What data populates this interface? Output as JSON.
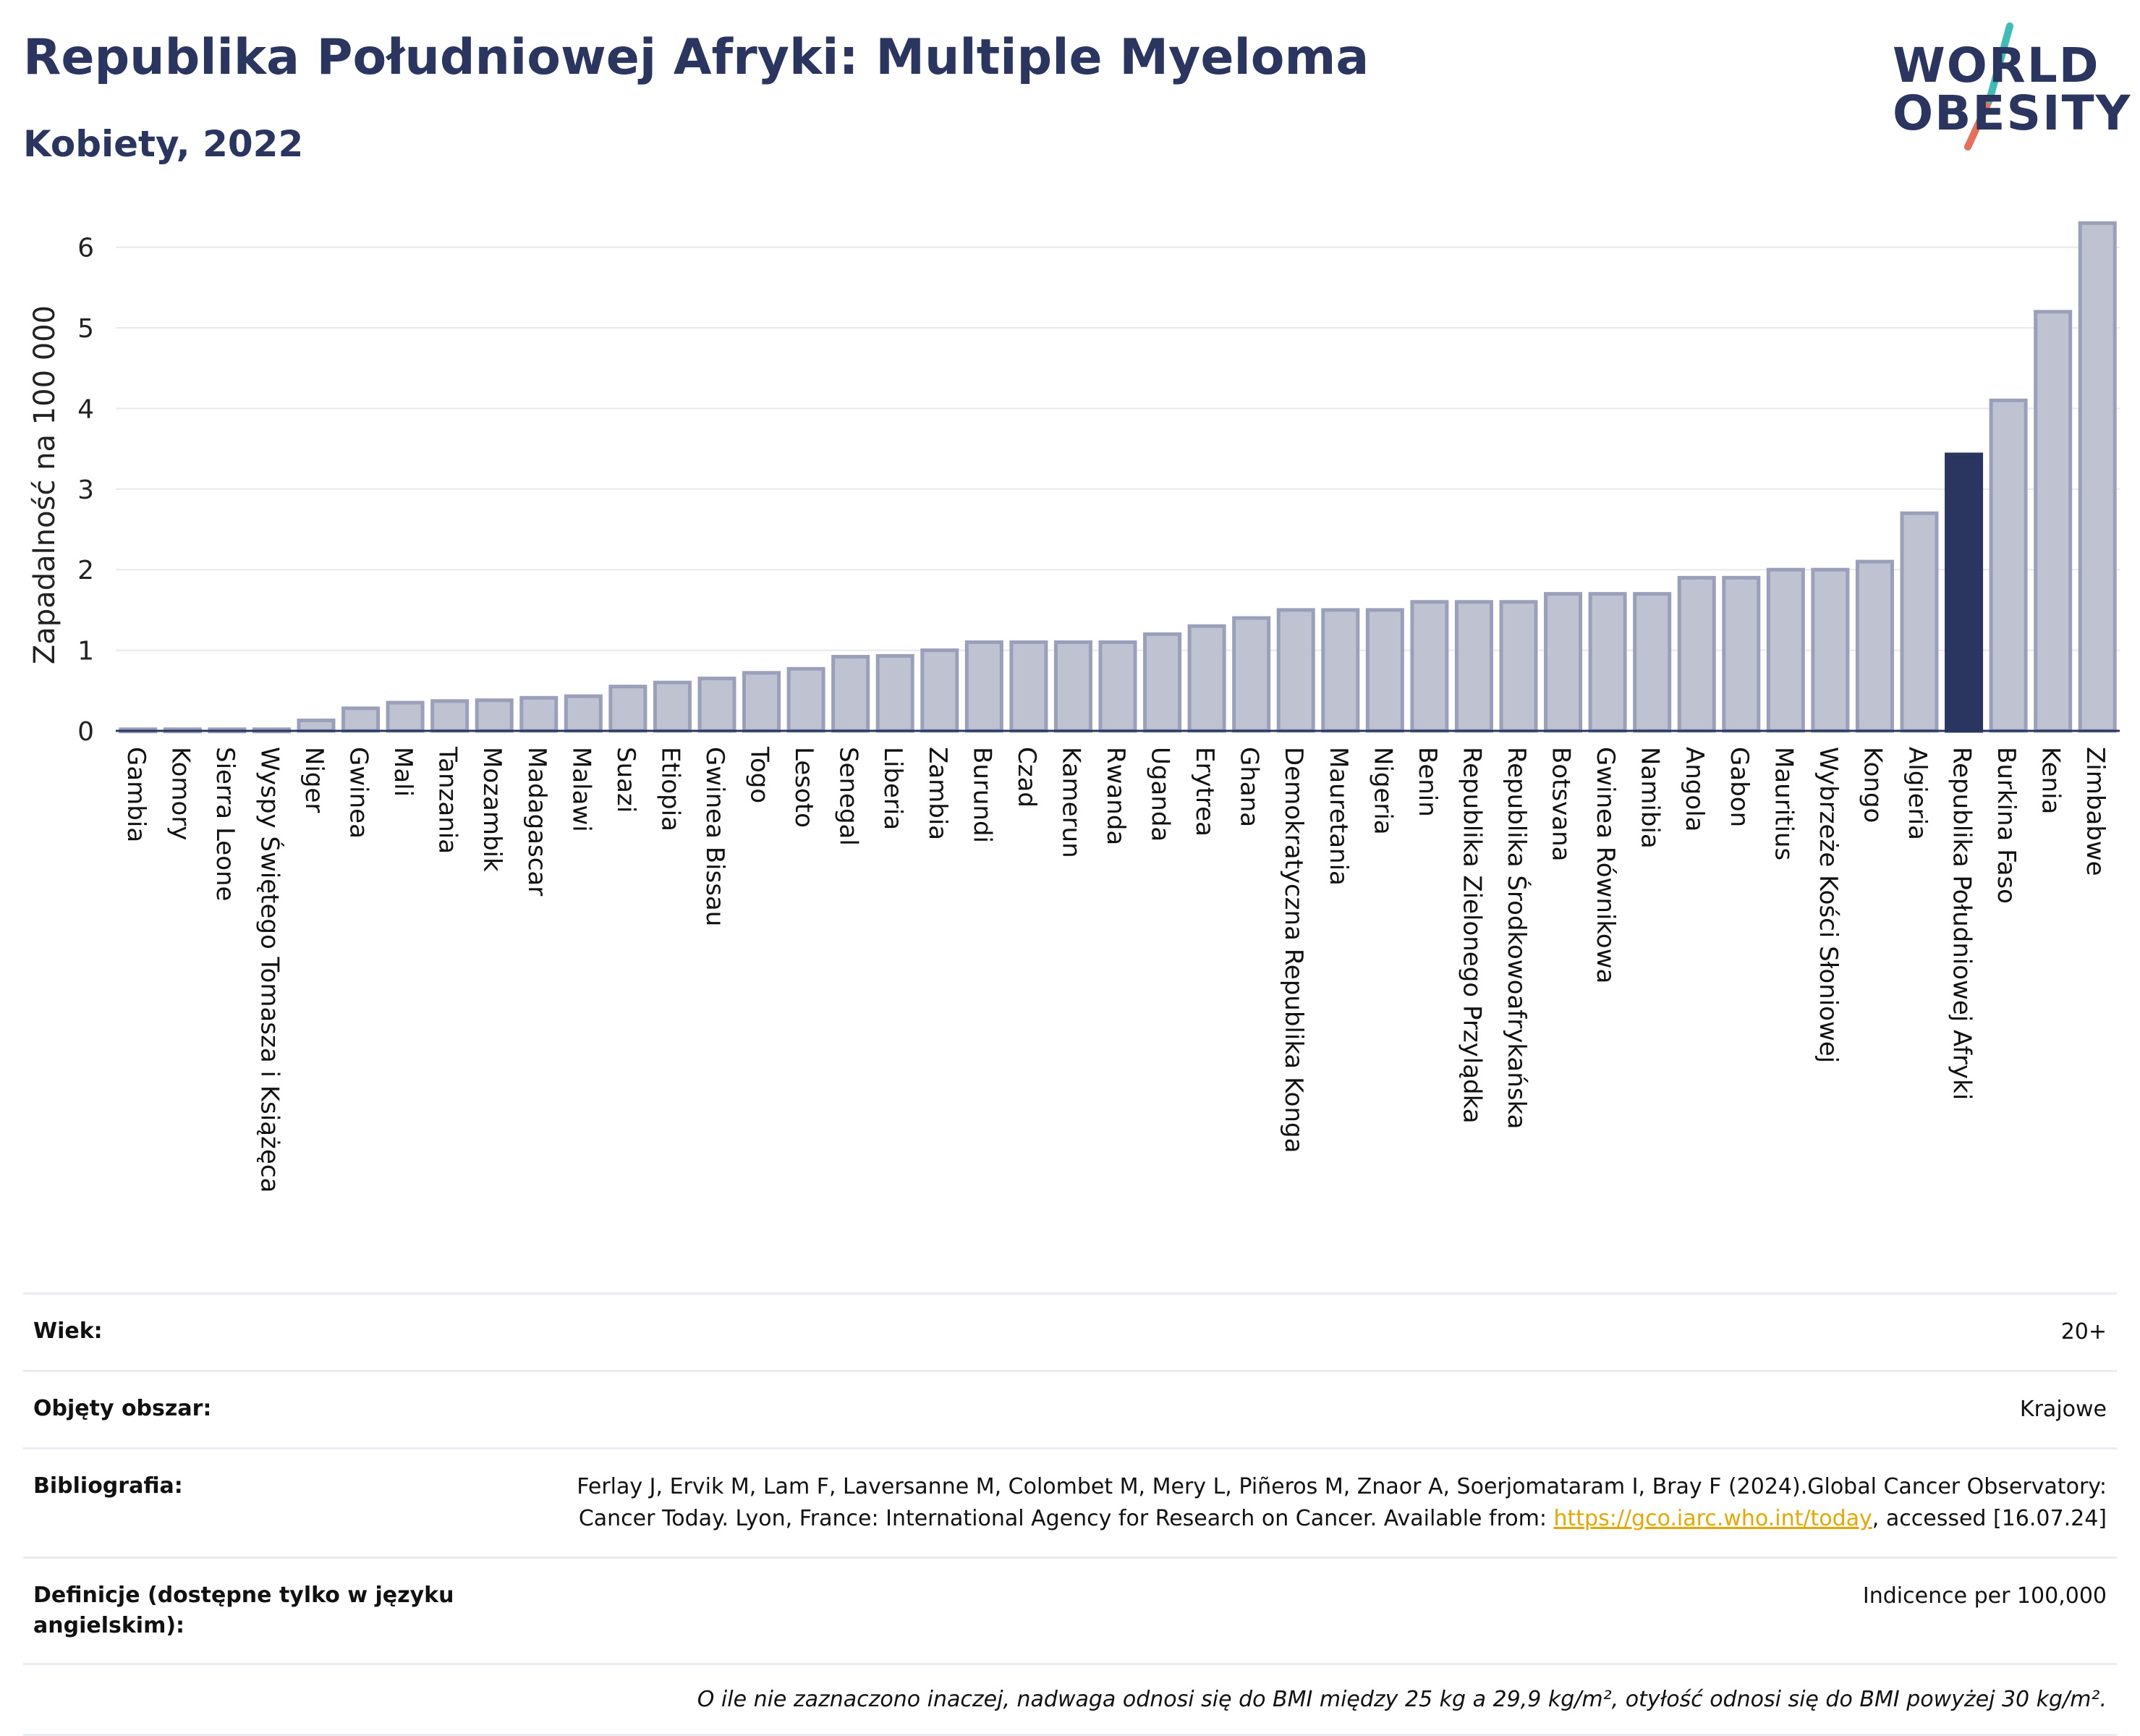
{
  "header": {
    "title": "Republika Południowej Afryki: Multiple Myeloma",
    "subtitle": "Kobiety, 2022"
  },
  "logo": {
    "line1": "WORLD",
    "line2": "OBESITY",
    "colors": {
      "text": "#2a3560",
      "slash_top": "#3dbdb5",
      "slash_bottom": "#e8705a"
    }
  },
  "chart_data": {
    "type": "bar",
    "title": "",
    "xlabel": "",
    "ylabel": "Zapadalność na 100 000",
    "ylim": [
      0,
      6.5
    ],
    "yticks": [
      0,
      1,
      2,
      3,
      4,
      5,
      6
    ],
    "grid": true,
    "highlight": "Republika Południowej Afryki",
    "colors": {
      "bar": "#bfc3d1",
      "bar_border": "#9aa0b9",
      "highlight": "#2a3560",
      "grid": "#e6e8ee"
    },
    "categories": [
      "Gambia",
      "Komory",
      "Sierra Leone",
      "Wyspy Świętego Tomasza i Książęca",
      "Niger",
      "Gwinea",
      "Mali",
      "Tanzania",
      "Mozambik",
      "Madagascar",
      "Malawi",
      "Suazi",
      "Etiopia",
      "Gwinea Bissau",
      "Togo",
      "Lesoto",
      "Senegal",
      "Liberia",
      "Zambia",
      "Burundi",
      "Czad",
      "Kamerun",
      "Rwanda",
      "Uganda",
      "Erytrea",
      "Ghana",
      "Demokratyczna Republika Konga",
      "Mauretania",
      "Nigeria",
      "Benin",
      "Republika Zielonego Przylądka",
      "Republika Środkowoafrykańska",
      "Botsvana",
      "Gwinea Równikowa",
      "Namibia",
      "Angola",
      "Gabon",
      "Mauritius",
      "Wybrzeże Kości Słoniowej",
      "Kongo",
      "Algieria",
      "Republika Południowej Afryki",
      "Burkina Faso",
      "Kenia",
      "Zimbabwe"
    ],
    "values": [
      0.02,
      0.02,
      0.02,
      0.02,
      0.13,
      0.28,
      0.35,
      0.37,
      0.38,
      0.41,
      0.43,
      0.55,
      0.6,
      0.65,
      0.72,
      0.77,
      0.92,
      0.93,
      1.0,
      1.1,
      1.1,
      1.1,
      1.1,
      1.2,
      1.3,
      1.4,
      1.5,
      1.5,
      1.5,
      1.6,
      1.6,
      1.6,
      1.7,
      1.7,
      1.7,
      1.9,
      1.9,
      2.0,
      2.0,
      2.1,
      2.7,
      3.43,
      4.1,
      5.2,
      6.3
    ]
  },
  "meta": {
    "rows": [
      {
        "key": "Wiek:",
        "value": "20+"
      },
      {
        "key": "Objęty obszar:",
        "value": "Krajowe"
      },
      {
        "key": "Bibliografia:",
        "value_pre": "Ferlay J, Ervik M, Lam F, Laversanne M, Colombet M, Mery L, Piñeros M, Znaor A, Soerjomataram I, Bray F (2024).Global Cancer Observatory: Cancer Today. Lyon, France: International Agency for Research on Cancer. Available from: ",
        "link": "https://gco.iarc.who.int/today",
        "value_post": ", accessed [16.07.24]"
      },
      {
        "key": "Definicje (dostępne tylko w języku angielskim):",
        "value": "Indicence per 100,000"
      }
    ],
    "note": "O ile nie zaznaczono inaczej, nadwaga odnosi się do BMI między 25 kg a 29,9 kg/m², otyłość odnosi się do BMI powyżej 30 kg/m²."
  }
}
